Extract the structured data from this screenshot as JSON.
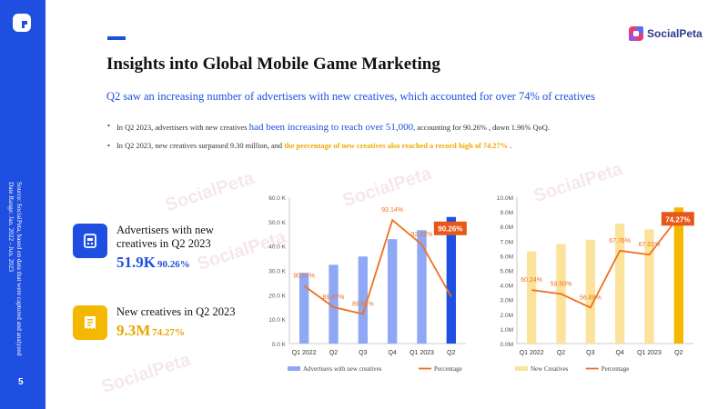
{
  "page": {
    "number": "5",
    "source": "Source: SocialPeta, based on data that were captured and analyzed",
    "date_range": "Date Range: Jan. 2022 - Jun. 2023"
  },
  "brand": {
    "name": "SocialPeta"
  },
  "title": "Insights into Global Mobile Game Marketing",
  "subtitle": "Q2 saw an increasing number of advertisers with new creatives, which accounted for over 74% of creatives",
  "bullets": [
    {
      "pre": "In Q2 2023, advertisers with new creatives ",
      "em": "had been increasing to reach over 51,000",
      "post": ", accounting for 90.26% , down 1.96% QoQ."
    },
    {
      "pre": "In Q2 2023, new creatives surpassed 9.30 million, and ",
      "em": "the percentage of new creatives also reached a record high of 74.27%",
      "post": " ."
    }
  ],
  "stats": [
    {
      "label": "Advertisers with new creatives in Q2 2023",
      "value": "51.9K",
      "pct": "90.26%",
      "color": "#1f4fe0",
      "icon": "ad-card-icon"
    },
    {
      "label": "New creatives in Q2 2023",
      "value": "9.3M",
      "pct": "74.27%",
      "color": "#f5b800",
      "icon": "receipt-icon"
    }
  ],
  "chart_data": [
    {
      "type": "bar",
      "categories": [
        "Q1 2022",
        "Q2",
        "Q3",
        "Q4",
        "Q1 2023",
        "Q2"
      ],
      "series": [
        {
          "name": "Advertisers with new creatives",
          "values": [
            29000,
            32300,
            35700,
            42800,
            46500,
            51900
          ],
          "color": "#8fa8f5",
          "highlight_color": "#1f4fe0"
        },
        {
          "name": "Percentage",
          "type": "line",
          "values": [
            90.67,
            89.87,
            89.61,
            93.14,
            92.22,
            90.26
          ],
          "labels": [
            "90.67%",
            "89.87%",
            "89.61%",
            "93.14%",
            "92.22%",
            "90.26%"
          ],
          "color": "#f07020"
        }
      ],
      "y_ticks": [
        "0.0 K",
        "10.0 K",
        "20.0 K",
        "30.0 K",
        "40.0 K",
        "50.0 K",
        "60.0 K"
      ],
      "ylim": [
        0,
        60000
      ],
      "line_range": [
        88.5,
        94
      ],
      "callout": "90.26%"
    },
    {
      "type": "bar",
      "categories": [
        "Q1 2022",
        "Q2",
        "Q3",
        "Q4",
        "Q1 2023",
        "Q2"
      ],
      "series": [
        {
          "name": "New Creatives",
          "values": [
            6300000,
            6800000,
            7100000,
            8200000,
            7800000,
            9300000
          ],
          "color": "#fbe39b",
          "highlight_color": "#f5b800"
        },
        {
          "name": "Percentage",
          "type": "line",
          "values": [
            60.24,
            59.5,
            56.88,
            67.76,
            67.01,
            74.27
          ],
          "labels": [
            "60.24%",
            "59.50%",
            "56.88%",
            "67.76%",
            "67.01%",
            "74.27%"
          ],
          "color": "#f07020"
        }
      ],
      "y_ticks": [
        "0.0M",
        "1.0M",
        "2.0M",
        "3.0M",
        "4.0M",
        "5.0M",
        "6.0M",
        "7.0M",
        "8.0M",
        "9.0M",
        "10.0M"
      ],
      "ylim": [
        0,
        10000000
      ],
      "line_range": [
        50,
        78
      ],
      "callout": "74.27%"
    }
  ]
}
